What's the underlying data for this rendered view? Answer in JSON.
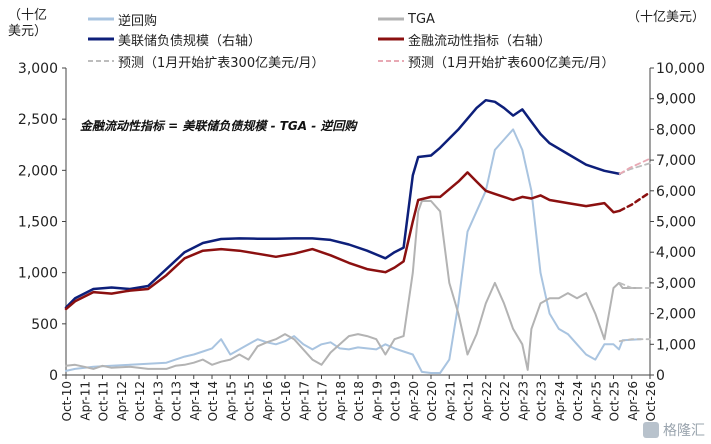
{
  "units": {
    "left": "（十亿\n美元）",
    "right": "（十亿美元）"
  },
  "annotation": "金融流动性指标 = 美联储负债规模 - TGA - 逆回购",
  "watermark": "格隆汇",
  "colors": {
    "rrp": "#a9c4e0",
    "fed": "#0d1f7a",
    "tga": "#b3b3b3",
    "liq": "#8b1010",
    "forecast300": "#bdbdbd",
    "forecast600": "#e8a9b4"
  },
  "chart_data": {
    "type": "line",
    "xlabels": [
      "Oct-10",
      "Apr-11",
      "Oct-11",
      "Apr-12",
      "Oct-12",
      "Apr-13",
      "Oct-13",
      "Apr-14",
      "Oct-14",
      "Apr-15",
      "Oct-15",
      "Apr-16",
      "Oct-16",
      "Apr-17",
      "Oct-17",
      "Apr-18",
      "Oct-18",
      "Apr-19",
      "Oct-19",
      "Apr-20",
      "Oct-20",
      "Apr-21",
      "Oct-21",
      "Apr-22",
      "Oct-22",
      "Apr-23",
      "Oct-23",
      "Apr-24",
      "Oct-24",
      "Apr-25",
      "Oct-25",
      "Apr-26",
      "Oct-26"
    ],
    "y_left": {
      "range": [
        0,
        3000
      ],
      "ticks": [
        0,
        500,
        1000,
        1500,
        2000,
        2500,
        3000
      ]
    },
    "y_right": {
      "range": [
        0,
        10000
      ],
      "ticks": [
        0,
        1000,
        2000,
        3000,
        4000,
        5000,
        6000,
        7000,
        8000,
        9000,
        10000
      ]
    },
    "x_range": [
      2010.75,
      2026.75
    ],
    "legend": [
      {
        "key": "rrp",
        "label": "逆回购",
        "axis": "left"
      },
      {
        "key": "fed",
        "label": "美联储负债规模（右轴）",
        "axis": "right"
      },
      {
        "key": "forecast300",
        "label": "预测（1月开始扩表300亿美元/月）",
        "dashed": true
      },
      {
        "key": "tga",
        "label": "TGA",
        "axis": "left"
      },
      {
        "key": "liq",
        "label": "金融流动性指标（右轴）",
        "axis": "right"
      },
      {
        "key": "forecast600",
        "label": "预测（1月开始扩表600亿美元/月）",
        "dashed": true
      }
    ],
    "series": [
      {
        "key": "rrp",
        "axis": "left",
        "points": [
          [
            2010.75,
            40
          ],
          [
            2011.0,
            60
          ],
          [
            2011.5,
            80
          ],
          [
            2012.0,
            90
          ],
          [
            2012.5,
            100
          ],
          [
            2013.0,
            110
          ],
          [
            2013.5,
            120
          ],
          [
            2013.75,
            150
          ],
          [
            2014.0,
            180
          ],
          [
            2014.25,
            200
          ],
          [
            2014.5,
            230
          ],
          [
            2014.75,
            260
          ],
          [
            2015.0,
            350
          ],
          [
            2015.25,
            200
          ],
          [
            2015.5,
            250
          ],
          [
            2015.75,
            300
          ],
          [
            2016.0,
            350
          ],
          [
            2016.25,
            320
          ],
          [
            2016.5,
            300
          ],
          [
            2016.75,
            330
          ],
          [
            2017.0,
            380
          ],
          [
            2017.25,
            300
          ],
          [
            2017.5,
            250
          ],
          [
            2017.75,
            300
          ],
          [
            2018.0,
            320
          ],
          [
            2018.25,
            260
          ],
          [
            2018.5,
            250
          ],
          [
            2018.75,
            270
          ],
          [
            2019.0,
            260
          ],
          [
            2019.25,
            250
          ],
          [
            2019.5,
            300
          ],
          [
            2019.75,
            260
          ],
          [
            2020.0,
            230
          ],
          [
            2020.25,
            200
          ],
          [
            2020.5,
            30
          ],
          [
            2020.75,
            20
          ],
          [
            2021.0,
            20
          ],
          [
            2021.25,
            150
          ],
          [
            2021.5,
            700
          ],
          [
            2021.75,
            1400
          ],
          [
            2022.0,
            1600
          ],
          [
            2022.25,
            1800
          ],
          [
            2022.5,
            2200
          ],
          [
            2022.75,
            2300
          ],
          [
            2023.0,
            2400
          ],
          [
            2023.25,
            2200
          ],
          [
            2023.5,
            1800
          ],
          [
            2023.75,
            1000
          ],
          [
            2024.0,
            600
          ],
          [
            2024.25,
            450
          ],
          [
            2024.5,
            400
          ],
          [
            2024.75,
            300
          ],
          [
            2025.0,
            200
          ],
          [
            2025.25,
            150
          ],
          [
            2025.5,
            300
          ],
          [
            2025.75,
            300
          ],
          [
            2025.9,
            250
          ],
          [
            2026.0,
            340
          ],
          [
            2026.5,
            350
          ]
        ]
      },
      {
        "key": "tga",
        "axis": "left",
        "points": [
          [
            2010.75,
            90
          ],
          [
            2011.0,
            100
          ],
          [
            2011.25,
            80
          ],
          [
            2011.5,
            60
          ],
          [
            2011.75,
            90
          ],
          [
            2012.0,
            70
          ],
          [
            2012.5,
            80
          ],
          [
            2013.0,
            60
          ],
          [
            2013.5,
            60
          ],
          [
            2013.75,
            90
          ],
          [
            2014.0,
            100
          ],
          [
            2014.25,
            120
          ],
          [
            2014.5,
            150
          ],
          [
            2014.75,
            100
          ],
          [
            2015.0,
            130
          ],
          [
            2015.25,
            150
          ],
          [
            2015.5,
            200
          ],
          [
            2015.75,
            150
          ],
          [
            2016.0,
            280
          ],
          [
            2016.25,
            320
          ],
          [
            2016.5,
            350
          ],
          [
            2016.75,
            400
          ],
          [
            2017.0,
            350
          ],
          [
            2017.25,
            250
          ],
          [
            2017.5,
            150
          ],
          [
            2017.75,
            100
          ],
          [
            2018.0,
            220
          ],
          [
            2018.25,
            300
          ],
          [
            2018.5,
            380
          ],
          [
            2018.75,
            400
          ],
          [
            2019.0,
            380
          ],
          [
            2019.25,
            350
          ],
          [
            2019.5,
            200
          ],
          [
            2019.75,
            350
          ],
          [
            2020.0,
            380
          ],
          [
            2020.25,
            1000
          ],
          [
            2020.4,
            1600
          ],
          [
            2020.5,
            1700
          ],
          [
            2020.75,
            1700
          ],
          [
            2021.0,
            1600
          ],
          [
            2021.25,
            900
          ],
          [
            2021.5,
            600
          ],
          [
            2021.75,
            200
          ],
          [
            2022.0,
            400
          ],
          [
            2022.25,
            700
          ],
          [
            2022.5,
            900
          ],
          [
            2022.75,
            700
          ],
          [
            2023.0,
            450
          ],
          [
            2023.25,
            300
          ],
          [
            2023.4,
            50
          ],
          [
            2023.5,
            450
          ],
          [
            2023.75,
            700
          ],
          [
            2024.0,
            750
          ],
          [
            2024.25,
            750
          ],
          [
            2024.5,
            800
          ],
          [
            2024.75,
            750
          ],
          [
            2025.0,
            800
          ],
          [
            2025.25,
            600
          ],
          [
            2025.5,
            350
          ],
          [
            2025.75,
            850
          ],
          [
            2025.9,
            900
          ],
          [
            2026.0,
            850
          ],
          [
            2026.5,
            850
          ]
        ]
      },
      {
        "key": "fed",
        "axis": "right",
        "points": [
          [
            2010.75,
            2200
          ],
          [
            2011.0,
            2500
          ],
          [
            2011.5,
            2800
          ],
          [
            2012.0,
            2850
          ],
          [
            2012.5,
            2800
          ],
          [
            2013.0,
            2900
          ],
          [
            2013.5,
            3450
          ],
          [
            2014.0,
            4000
          ],
          [
            2014.5,
            4300
          ],
          [
            2015.0,
            4430
          ],
          [
            2015.5,
            4450
          ],
          [
            2016.0,
            4440
          ],
          [
            2016.5,
            4440
          ],
          [
            2017.0,
            4450
          ],
          [
            2017.5,
            4450
          ],
          [
            2018.0,
            4400
          ],
          [
            2018.5,
            4250
          ],
          [
            2019.0,
            4050
          ],
          [
            2019.5,
            3800
          ],
          [
            2019.75,
            4000
          ],
          [
            2020.0,
            4150
          ],
          [
            2020.25,
            6500
          ],
          [
            2020.4,
            7100
          ],
          [
            2020.75,
            7150
          ],
          [
            2021.0,
            7400
          ],
          [
            2021.5,
            8000
          ],
          [
            2022.0,
            8700
          ],
          [
            2022.25,
            8950
          ],
          [
            2022.5,
            8900
          ],
          [
            2022.75,
            8700
          ],
          [
            2023.0,
            8450
          ],
          [
            2023.25,
            8650
          ],
          [
            2023.5,
            8250
          ],
          [
            2023.75,
            7850
          ],
          [
            2024.0,
            7550
          ],
          [
            2024.5,
            7200
          ],
          [
            2025.0,
            6850
          ],
          [
            2025.5,
            6650
          ],
          [
            2025.92,
            6550
          ]
        ]
      },
      {
        "key": "liq",
        "axis": "right",
        "points": [
          [
            2010.75,
            2150
          ],
          [
            2011.0,
            2400
          ],
          [
            2011.5,
            2700
          ],
          [
            2012.0,
            2650
          ],
          [
            2012.5,
            2750
          ],
          [
            2013.0,
            2800
          ],
          [
            2013.5,
            3250
          ],
          [
            2014.0,
            3800
          ],
          [
            2014.5,
            4050
          ],
          [
            2015.0,
            4100
          ],
          [
            2015.5,
            4050
          ],
          [
            2016.0,
            3950
          ],
          [
            2016.5,
            3850
          ],
          [
            2017.0,
            3950
          ],
          [
            2017.5,
            4100
          ],
          [
            2018.0,
            3900
          ],
          [
            2018.5,
            3650
          ],
          [
            2019.0,
            3450
          ],
          [
            2019.5,
            3350
          ],
          [
            2019.75,
            3500
          ],
          [
            2020.0,
            3700
          ],
          [
            2020.25,
            5000
          ],
          [
            2020.4,
            5700
          ],
          [
            2020.75,
            5800
          ],
          [
            2021.0,
            5800
          ],
          [
            2021.5,
            6300
          ],
          [
            2021.75,
            6600
          ],
          [
            2022.0,
            6300
          ],
          [
            2022.25,
            6000
          ],
          [
            2022.5,
            5900
          ],
          [
            2022.75,
            5800
          ],
          [
            2023.0,
            5700
          ],
          [
            2023.25,
            5800
          ],
          [
            2023.5,
            5750
          ],
          [
            2023.75,
            5850
          ],
          [
            2024.0,
            5700
          ],
          [
            2024.5,
            5600
          ],
          [
            2025.0,
            5500
          ],
          [
            2025.5,
            5600
          ],
          [
            2025.75,
            5300
          ],
          [
            2025.92,
            5350
          ]
        ]
      },
      {
        "key": "forecast300",
        "axis": "left",
        "dashed": true,
        "points": [
          [
            2025.92,
            900
          ],
          [
            2026.25,
            850
          ],
          [
            2026.75,
            850
          ]
        ]
      },
      {
        "key": "forecast300",
        "axis": "left",
        "dashed": true,
        "points": [
          [
            2025.92,
            330
          ],
          [
            2026.25,
            350
          ],
          [
            2026.75,
            350
          ]
        ]
      },
      {
        "key": "forecast300",
        "axis": "right",
        "dashed": true,
        "points": [
          [
            2025.92,
            6550
          ],
          [
            2026.2,
            6700
          ],
          [
            2026.75,
            6900
          ]
        ]
      },
      {
        "key": "forecast600",
        "axis": "right",
        "dashed": true,
        "points": [
          [
            2025.92,
            6550
          ],
          [
            2026.2,
            6750
          ],
          [
            2026.75,
            7050
          ]
        ]
      },
      {
        "key": "liq",
        "axis": "right",
        "dashed": true,
        "points": [
          [
            2025.92,
            5350
          ],
          [
            2026.25,
            5550
          ],
          [
            2026.75,
            5950
          ]
        ]
      }
    ]
  }
}
